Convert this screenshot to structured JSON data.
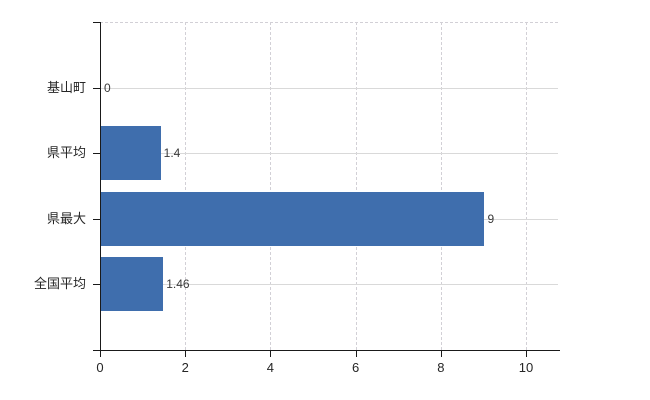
{
  "chart_data": {
    "type": "bar",
    "orientation": "horizontal",
    "title": "",
    "xlabel": "",
    "ylabel": "",
    "categories": [
      "基山町",
      "県平均",
      "県最大",
      "全国平均"
    ],
    "values": [
      0,
      1.4,
      9,
      1.46
    ],
    "value_labels": [
      "0",
      "1.4",
      "9",
      "1.46"
    ],
    "x_ticks": [
      0,
      2,
      4,
      6,
      8,
      10
    ],
    "x_tick_labels": [
      "0",
      "2",
      "4",
      "6",
      "8",
      "10"
    ],
    "xlim": [
      0,
      10.75
    ],
    "grid": "on",
    "legend": "none",
    "bar_color": "#3f6ead",
    "grid_solid_color": "#d9d9d9",
    "grid_dashed_color": "#d2d0d6",
    "axis_color": "#1a1a1a",
    "label_color": "#262626",
    "value_label_color": "#3a3a3a"
  }
}
